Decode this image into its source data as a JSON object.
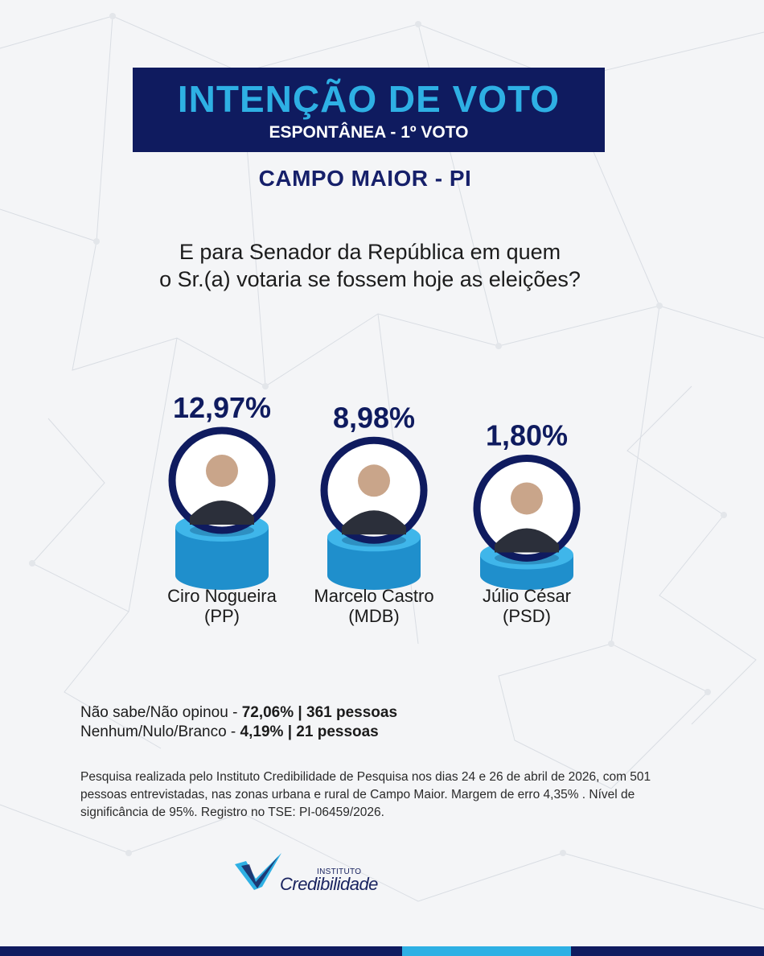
{
  "header": {
    "title": "INTENÇÃO DE VOTO",
    "subtitle": "ESPONTÂNEA - 1º VOTO",
    "location": "CAMPO MAIOR - PI"
  },
  "question": {
    "line1": "E para Senador da República em quem",
    "line2": "o Sr.(a) votaria se fossem hoje as eleições?"
  },
  "colors": {
    "navy": "#0f1b5f",
    "accent": "#2eb0e4",
    "pedestal_top": "#3fb6ea",
    "pedestal_side": "#1f8fcc"
  },
  "chart_data": {
    "type": "bar",
    "categories": [
      "Ciro Nogueira (PP)",
      "Marcelo Castro (MDB)",
      "Júlio César (PSD)"
    ],
    "values": [
      12.97,
      8.98,
      1.8
    ],
    "value_labels": [
      "12,97%",
      "8,98%",
      "1,80%"
    ],
    "candidates": [
      {
        "name": "Ciro Nogueira",
        "party": "(PP)"
      },
      {
        "name": "Marcelo Castro",
        "party": "(MDB)"
      },
      {
        "name": "Júlio César",
        "party": "(PSD)"
      }
    ]
  },
  "others": [
    {
      "label": "Não sabe/Não opinou - ",
      "value": "72,06% | 361 pessoas"
    },
    {
      "label": "Nenhum/Nulo/Branco - ",
      "value": "4,19% | 21 pessoas"
    }
  ],
  "methodology": "Pesquisa realizada pelo  Instituto Credibilidade de Pesquisa nos dias 24 e 26 de abril de 2026, com 501 pessoas entrevistadas, nas zonas urbana e rural de Campo Maior. Margem de erro 4,35% . Nível de significância de 95%. Registro no TSE:  PI-06459/2026.",
  "logo": {
    "small": "INSTITUTO",
    "big": "Credibilidade"
  }
}
